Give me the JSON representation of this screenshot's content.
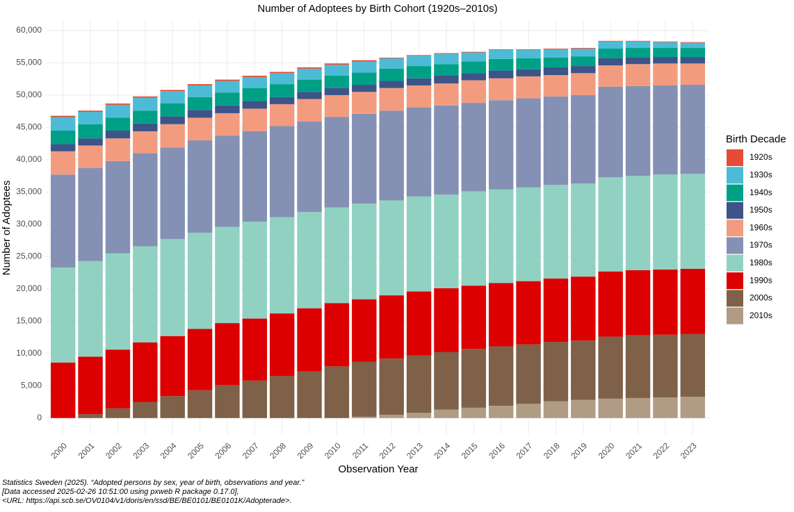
{
  "chart_data": {
    "type": "stacked_bar",
    "title": "Number of Adoptees by Birth Cohort (1920s–2010s)",
    "x_label": "Observation Year",
    "y_label": "Number of Adoptees",
    "legend_title": "Birth Decade",
    "legend_position": "right",
    "grid": true,
    "caption": [
      "Statistics Sweden (2025). “Adopted persons by sex, year of birth, observations and year.”",
      "[Data accessed 2025-02-26 10:51:00 using pxweb R package 0.17.0],",
      "<URL: https://api.scb.se/OV0104/v1/doris/en/ssd/BE/BE0101/BE0101K/Adopterade>."
    ],
    "categories": [
      "2000",
      "2001",
      "2002",
      "2003",
      "2004",
      "2005",
      "2006",
      "2007",
      "2008",
      "2009",
      "2010",
      "2011",
      "2012",
      "2013",
      "2014",
      "2015",
      "2016",
      "2017",
      "2018",
      "2019",
      "2020",
      "2021",
      "2022",
      "2023"
    ],
    "ylim": [
      -2500,
      61500
    ],
    "yticks": [
      0,
      {
        "value": 5000,
        "label": "5,000"
      },
      {
        "value": 10000,
        "label": "10,000"
      },
      {
        "value": 15000,
        "label": "15,000"
      },
      {
        "value": 20000,
        "label": "20,000"
      },
      {
        "value": 25000,
        "label": "25,000"
      },
      {
        "value": 30000,
        "label": "30,000"
      },
      {
        "value": 35000,
        "label": "35,000"
      },
      {
        "value": 40000,
        "label": "40,000"
      },
      {
        "value": 45000,
        "label": "45,000"
      },
      {
        "value": 50000,
        "label": "50,000"
      },
      {
        "value": 55000,
        "label": "55,000"
      },
      {
        "value": 60000,
        "label": "60,000"
      }
    ],
    "series": [
      {
        "name": "1920s",
        "color": "#e64b35",
        "values": [
          200,
          200,
          200,
          200,
          200,
          200,
          200,
          200,
          200,
          200,
          200,
          200,
          100,
          100,
          100,
          100,
          100,
          100,
          100,
          100,
          100,
          100,
          100,
          100
        ]
      },
      {
        "name": "1930s",
        "color": "#4dbbd5",
        "values": [
          2100,
          1900,
          2000,
          2000,
          1900,
          1800,
          1800,
          1700,
          1700,
          1700,
          1700,
          1700,
          1600,
          1600,
          1600,
          1400,
          1400,
          1300,
          1300,
          1200,
          1100,
          1000,
          900,
          800
        ]
      },
      {
        "name": "1940s",
        "color": "#00a087",
        "values": [
          2100,
          2200,
          2000,
          2000,
          2000,
          2000,
          2000,
          2000,
          2000,
          1900,
          1900,
          1900,
          1900,
          1900,
          1800,
          1800,
          1800,
          1700,
          1500,
          1500,
          1500,
          1500,
          1400,
          1400
        ]
      },
      {
        "name": "1950s",
        "color": "#3c5488",
        "values": [
          1100,
          1100,
          1200,
          1200,
          1200,
          1200,
          1200,
          1200,
          1100,
          1100,
          1100,
          1100,
          1100,
          1100,
          1200,
          1100,
          1200,
          1100,
          1200,
          1100,
          1100,
          1000,
          1000,
          1000
        ]
      },
      {
        "name": "1960s",
        "color": "#f39b7f",
        "values": [
          3600,
          3500,
          3500,
          3400,
          3600,
          3500,
          3500,
          3500,
          3400,
          3500,
          3400,
          3400,
          3500,
          3400,
          3400,
          3500,
          3400,
          3400,
          3300,
          3400,
          3300,
          3400,
          3400,
          3300
        ]
      },
      {
        "name": "1970s",
        "color": "#8491b4",
        "values": [
          14400,
          14400,
          14300,
          14400,
          14200,
          14300,
          14100,
          14000,
          14100,
          14000,
          14000,
          13900,
          13900,
          13800,
          13800,
          13700,
          13800,
          13800,
          13700,
          13700,
          14000,
          13900,
          13800,
          13800
        ]
      },
      {
        "name": "1980s",
        "color": "#91d1c2",
        "values": [
          14700,
          14800,
          14900,
          14900,
          15000,
          14900,
          14900,
          15000,
          14900,
          14900,
          14800,
          14800,
          14700,
          14700,
          14500,
          14600,
          14500,
          14500,
          14500,
          14400,
          14600,
          14600,
          14700,
          14700
        ]
      },
      {
        "name": "1990s",
        "color": "#dc0000",
        "values": [
          8600,
          8900,
          9100,
          9200,
          9300,
          9500,
          9600,
          9600,
          9700,
          9800,
          9800,
          9700,
          9800,
          9900,
          9900,
          9800,
          9800,
          9800,
          9800,
          9900,
          10100,
          10100,
          10100,
          10100
        ]
      },
      {
        "name": "2000s",
        "color": "#7e6148",
        "values": [
          0,
          600,
          1500,
          2500,
          3400,
          4300,
          5100,
          5800,
          6500,
          7200,
          8000,
          8500,
          8700,
          8900,
          8900,
          9100,
          9200,
          9200,
          9200,
          9200,
          9600,
          9700,
          9700,
          9700
        ]
      },
      {
        "name": "2010s",
        "color": "#b09c85",
        "values": [
          0,
          0,
          0,
          0,
          0,
          0,
          0,
          0,
          0,
          0,
          0,
          200,
          500,
          800,
          1300,
          1600,
          1900,
          2200,
          2600,
          2800,
          3000,
          3100,
          3200,
          3300
        ]
      }
    ]
  }
}
